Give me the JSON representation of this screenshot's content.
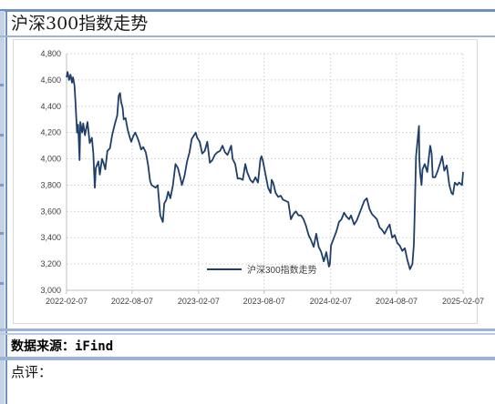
{
  "page": {
    "title": "沪深300指数走势",
    "source": "数据来源：iFind",
    "comment_label": "点评："
  },
  "chart_data": {
    "type": "line",
    "title": "",
    "xlabel": "",
    "ylabel": "",
    "ylim": [
      3000,
      4800
    ],
    "yticks": [
      3000,
      3200,
      3400,
      3600,
      3800,
      4000,
      4200,
      4400,
      4600,
      4800
    ],
    "ytick_labels": [
      "3,000",
      "3,200",
      "3,400",
      "3,600",
      "3,800",
      "4,000",
      "4,200",
      "4,400",
      "4,600",
      "4,800"
    ],
    "xlim": [
      "2022-02-07",
      "2025-02-07"
    ],
    "xticks": [
      "2022-02-07",
      "2022-08-07",
      "2023-02-07",
      "2023-08-07",
      "2024-02-07",
      "2024-08-07",
      "2025-02-07"
    ],
    "grid": "dotted vertical and horizontal",
    "legend": "bottom-center",
    "series_color": "#1f3f6b",
    "series": [
      {
        "name": "沪深300指数走势",
        "points": [
          [
            "2022-02-07",
            4620
          ],
          [
            "2022-02-10",
            4660
          ],
          [
            "2022-02-14",
            4600
          ],
          [
            "2022-02-18",
            4640
          ],
          [
            "2022-02-22",
            4580
          ],
          [
            "2022-02-25",
            4620
          ],
          [
            "2022-03-01",
            4560
          ],
          [
            "2022-03-04",
            4420
          ],
          [
            "2022-03-08",
            4200
          ],
          [
            "2022-03-11",
            4260
          ],
          [
            "2022-03-15",
            3990
          ],
          [
            "2022-03-17",
            4280
          ],
          [
            "2022-03-22",
            4200
          ],
          [
            "2022-03-25",
            4270
          ],
          [
            "2022-03-30",
            4180
          ],
          [
            "2022-04-06",
            4280
          ],
          [
            "2022-04-12",
            4120
          ],
          [
            "2022-04-18",
            4160
          ],
          [
            "2022-04-22",
            4040
          ],
          [
            "2022-04-26",
            3780
          ],
          [
            "2022-04-29",
            3930
          ],
          [
            "2022-05-06",
            3980
          ],
          [
            "2022-05-10",
            3880
          ],
          [
            "2022-05-16",
            4000
          ],
          [
            "2022-05-20",
            3970
          ],
          [
            "2022-05-25",
            3920
          ],
          [
            "2022-05-31",
            4060
          ],
          [
            "2022-06-07",
            4080
          ],
          [
            "2022-06-13",
            4180
          ],
          [
            "2022-06-20",
            4260
          ],
          [
            "2022-06-27",
            4330
          ],
          [
            "2022-07-01",
            4480
          ],
          [
            "2022-07-05",
            4500
          ],
          [
            "2022-07-08",
            4430
          ],
          [
            "2022-07-12",
            4390
          ],
          [
            "2022-07-15",
            4300
          ],
          [
            "2022-07-20",
            4310
          ],
          [
            "2022-07-26",
            4220
          ],
          [
            "2022-08-01",
            4160
          ],
          [
            "2022-08-05",
            4130
          ],
          [
            "2022-08-10",
            4170
          ],
          [
            "2022-08-16",
            4200
          ],
          [
            "2022-08-22",
            4160
          ],
          [
            "2022-08-26",
            4130
          ],
          [
            "2022-09-01",
            4070
          ],
          [
            "2022-09-07",
            4090
          ],
          [
            "2022-09-14",
            4050
          ],
          [
            "2022-09-20",
            3960
          ],
          [
            "2022-09-26",
            3830
          ],
          [
            "2022-09-30",
            3800
          ],
          [
            "2022-10-11",
            3780
          ],
          [
            "2022-10-17",
            3800
          ],
          [
            "2022-10-24",
            3570
          ],
          [
            "2022-10-31",
            3520
          ],
          [
            "2022-11-04",
            3660
          ],
          [
            "2022-11-10",
            3690
          ],
          [
            "2022-11-15",
            3750
          ],
          [
            "2022-11-21",
            3700
          ],
          [
            "2022-11-28",
            3800
          ],
          [
            "2022-12-05",
            3960
          ],
          [
            "2022-12-12",
            3930
          ],
          [
            "2022-12-19",
            3850
          ],
          [
            "2022-12-23",
            3800
          ],
          [
            "2022-12-30",
            3870
          ],
          [
            "2023-01-06",
            3980
          ],
          [
            "2023-01-13",
            4050
          ],
          [
            "2023-01-19",
            4150
          ],
          [
            "2023-01-30",
            4200
          ],
          [
            "2023-02-03",
            4160
          ],
          [
            "2023-02-10",
            4130
          ],
          [
            "2023-02-17",
            4040
          ],
          [
            "2023-02-24",
            4060
          ],
          [
            "2023-03-03",
            4130
          ],
          [
            "2023-03-10",
            3970
          ],
          [
            "2023-03-17",
            3990
          ],
          [
            "2023-03-24",
            4030
          ],
          [
            "2023-03-31",
            4050
          ],
          [
            "2023-04-07",
            4060
          ],
          [
            "2023-04-14",
            4100
          ],
          [
            "2023-04-21",
            4050
          ],
          [
            "2023-04-28",
            4030
          ],
          [
            "2023-05-08",
            4100
          ],
          [
            "2023-05-12",
            4000
          ],
          [
            "2023-05-19",
            3960
          ],
          [
            "2023-05-26",
            3850
          ],
          [
            "2023-06-02",
            3850
          ],
          [
            "2023-06-09",
            3840
          ],
          [
            "2023-06-16",
            3960
          ],
          [
            "2023-06-21",
            3900
          ],
          [
            "2023-06-30",
            3840
          ],
          [
            "2023-07-07",
            3820
          ],
          [
            "2023-07-14",
            3860
          ],
          [
            "2023-07-21",
            3820
          ],
          [
            "2023-07-28",
            4000
          ],
          [
            "2023-07-31",
            4020
          ],
          [
            "2023-08-04",
            3980
          ],
          [
            "2023-08-11",
            3880
          ],
          [
            "2023-08-18",
            3780
          ],
          [
            "2023-08-25",
            3740
          ],
          [
            "2023-08-28",
            3840
          ],
          [
            "2023-09-01",
            3820
          ],
          [
            "2023-09-08",
            3740
          ],
          [
            "2023-09-15",
            3710
          ],
          [
            "2023-09-22",
            3720
          ],
          [
            "2023-09-28",
            3690
          ],
          [
            "2023-10-13",
            3670
          ],
          [
            "2023-10-20",
            3540
          ],
          [
            "2023-10-27",
            3580
          ],
          [
            "2023-11-03",
            3600
          ],
          [
            "2023-11-10",
            3570
          ],
          [
            "2023-11-17",
            3570
          ],
          [
            "2023-11-24",
            3540
          ],
          [
            "2023-12-01",
            3490
          ],
          [
            "2023-12-08",
            3420
          ],
          [
            "2023-12-15",
            3380
          ],
          [
            "2023-12-22",
            3330
          ],
          [
            "2023-12-29",
            3430
          ],
          [
            "2024-01-05",
            3330
          ],
          [
            "2024-01-12",
            3290
          ],
          [
            "2024-01-19",
            3220
          ],
          [
            "2024-01-26",
            3290
          ],
          [
            "2024-02-02",
            3180
          ],
          [
            "2024-02-05",
            3200
          ],
          [
            "2024-02-08",
            3340
          ],
          [
            "2024-02-23",
            3450
          ],
          [
            "2024-03-01",
            3520
          ],
          [
            "2024-03-08",
            3540
          ],
          [
            "2024-03-15",
            3590
          ],
          [
            "2024-03-22",
            3560
          ],
          [
            "2024-03-29",
            3540
          ],
          [
            "2024-04-03",
            3570
          ],
          [
            "2024-04-12",
            3500
          ],
          [
            "2024-04-19",
            3530
          ],
          [
            "2024-04-26",
            3580
          ],
          [
            "2024-05-10",
            3680
          ],
          [
            "2024-05-17",
            3700
          ],
          [
            "2024-05-24",
            3620
          ],
          [
            "2024-05-31",
            3580
          ],
          [
            "2024-06-07",
            3560
          ],
          [
            "2024-06-14",
            3540
          ],
          [
            "2024-06-21",
            3480
          ],
          [
            "2024-06-28",
            3460
          ],
          [
            "2024-07-05",
            3430
          ],
          [
            "2024-07-12",
            3470
          ],
          [
            "2024-07-19",
            3500
          ],
          [
            "2024-07-26",
            3400
          ],
          [
            "2024-08-02",
            3420
          ],
          [
            "2024-08-09",
            3360
          ],
          [
            "2024-08-16",
            3340
          ],
          [
            "2024-08-23",
            3300
          ],
          [
            "2024-08-30",
            3320
          ],
          [
            "2024-09-06",
            3230
          ],
          [
            "2024-09-13",
            3160
          ],
          [
            "2024-09-20",
            3200
          ],
          [
            "2024-09-24",
            3350
          ],
          [
            "2024-09-26",
            3560
          ],
          [
            "2024-09-30",
            4020
          ],
          [
            "2024-10-08",
            4250
          ],
          [
            "2024-10-09",
            4000
          ],
          [
            "2024-10-11",
            3900
          ],
          [
            "2024-10-15",
            3800
          ],
          [
            "2024-10-18",
            3920
          ],
          [
            "2024-10-24",
            3960
          ],
          [
            "2024-10-31",
            3900
          ],
          [
            "2024-11-08",
            4100
          ],
          [
            "2024-11-12",
            4040
          ],
          [
            "2024-11-15",
            3860
          ],
          [
            "2024-11-22",
            3860
          ],
          [
            "2024-11-29",
            3910
          ],
          [
            "2024-12-06",
            3970
          ],
          [
            "2024-12-11",
            4020
          ],
          [
            "2024-12-17",
            3910
          ],
          [
            "2024-12-24",
            3950
          ],
          [
            "2024-12-31",
            3800
          ],
          [
            "2025-01-06",
            3740
          ],
          [
            "2025-01-10",
            3730
          ],
          [
            "2025-01-15",
            3820
          ],
          [
            "2025-01-22",
            3800
          ],
          [
            "2025-01-27",
            3820
          ],
          [
            "2025-02-04",
            3800
          ],
          [
            "2025-02-07",
            3900
          ]
        ]
      }
    ]
  }
}
